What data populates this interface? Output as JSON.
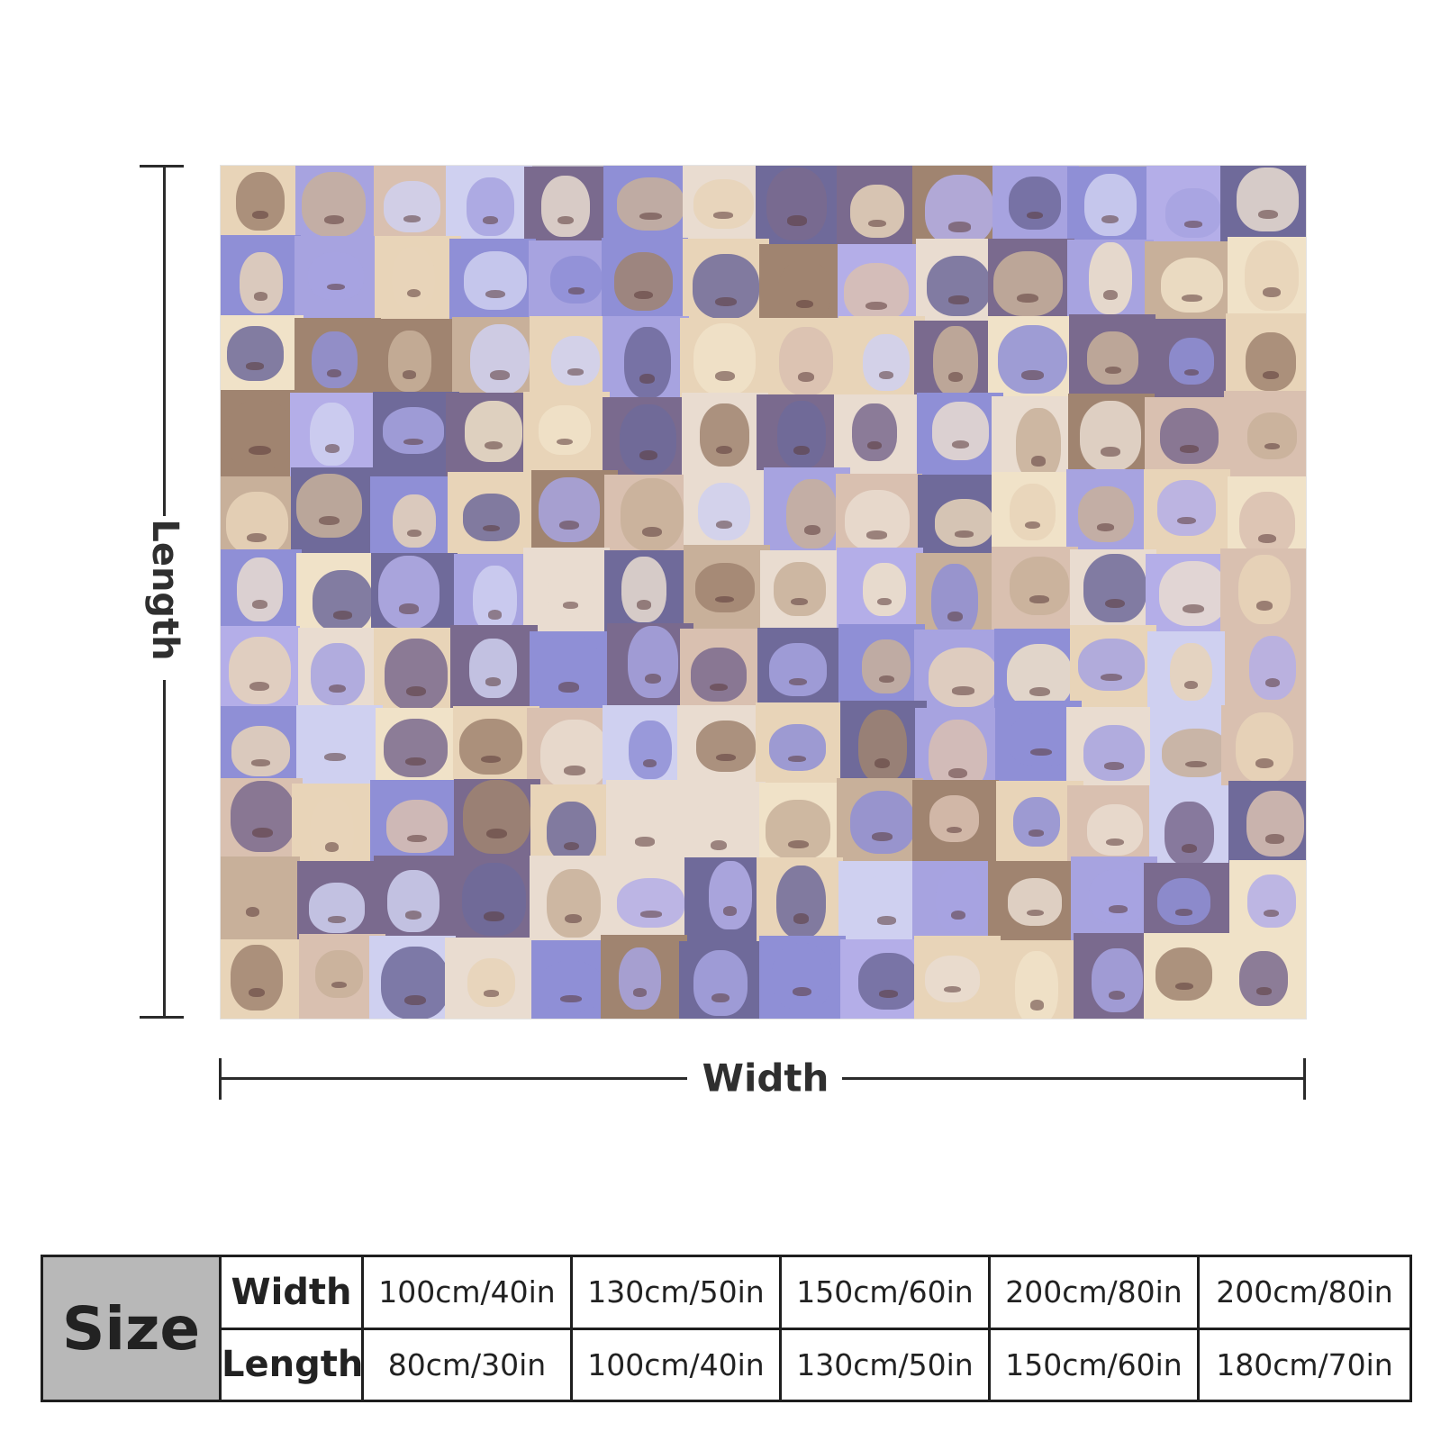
{
  "indicators": {
    "length_label": "Length",
    "width_label": "Width"
  },
  "size_table": {
    "header": "Size",
    "rows": [
      {
        "label": "Width",
        "values": [
          "100cm/40in",
          "130cm/50in",
          "150cm/60in",
          "200cm/80in",
          "200cm/80in"
        ]
      },
      {
        "label": "Length",
        "values": [
          "80cm/30in",
          "100cm/40in",
          "130cm/50in",
          "150cm/60in",
          "180cm/70in"
        ]
      }
    ]
  },
  "colors": {
    "palette": [
      "#8f8fd6",
      "#e8d4b8",
      "#c8b09a",
      "#a7a3e0",
      "#f0e2c8",
      "#7a6a8e",
      "#d9c0b0",
      "#b4aee8",
      "#6f6a9a",
      "#e9dcd0",
      "#a08470",
      "#cfd0f0"
    ]
  }
}
